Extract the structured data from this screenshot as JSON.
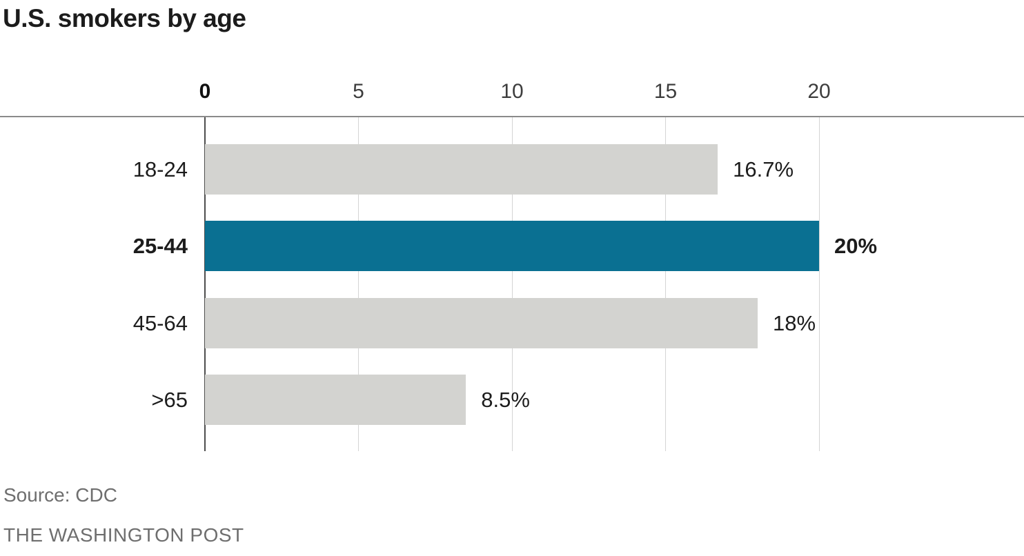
{
  "title": "U.S. smokers by age",
  "footer": {
    "source": "Source: CDC",
    "credit": "THE WASHINGTON POST"
  },
  "chart_data": {
    "type": "bar",
    "orientation": "horizontal",
    "title": "U.S. smokers by age",
    "categories": [
      "18-24",
      "25-44",
      "45-64",
      ">65"
    ],
    "values": [
      16.7,
      20,
      18,
      8.5
    ],
    "value_labels": [
      "16.7%",
      "20%",
      "18%",
      "8.5%"
    ],
    "highlighted_index": 1,
    "highlighted_category": "25-44",
    "x_ticks": [
      0,
      5,
      10,
      15,
      20
    ],
    "xlim": [
      0,
      20
    ],
    "grid": true,
    "legend": "none",
    "bar_color": "#d3d3d0",
    "highlight_color": "#0a7092",
    "label_color": "#1c1c1c",
    "source": "Source: CDC",
    "credit": "THE WASHINGTON POST"
  }
}
